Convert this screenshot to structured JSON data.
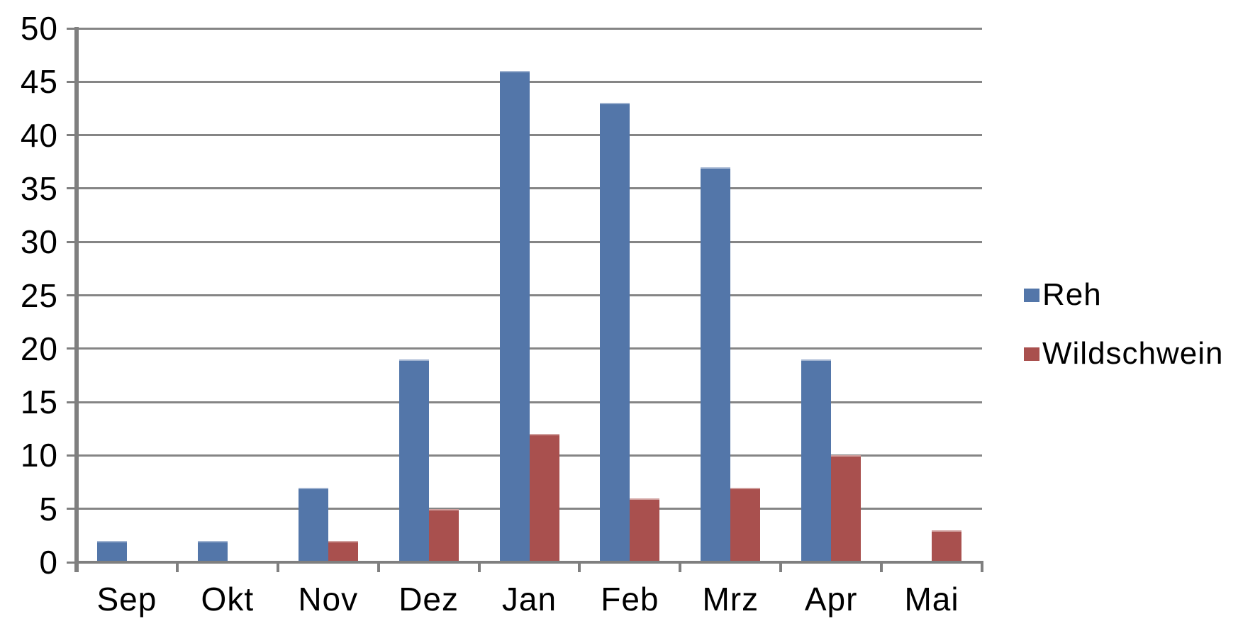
{
  "chart_data": {
    "type": "bar",
    "categories": [
      "Sep",
      "Okt",
      "Nov",
      "Dez",
      "Jan",
      "Feb",
      "Mrz",
      "Apr",
      "Mai"
    ],
    "series": [
      {
        "name": "Reh",
        "color": "#5376A9",
        "values": [
          2,
          2,
          7,
          19,
          46,
          43,
          37,
          19,
          0
        ]
      },
      {
        "name": "Wildschwein",
        "color": "#A9504E",
        "values": [
          0,
          0,
          2,
          5,
          12,
          6,
          7,
          10,
          3
        ]
      }
    ],
    "title": "",
    "xlabel": "",
    "ylabel": "",
    "ylim": [
      0,
      50
    ],
    "ytick_step": 5,
    "y_tick_labels": [
      "0",
      "5",
      "10",
      "15",
      "20",
      "25",
      "30",
      "35",
      "40",
      "45",
      "50"
    ],
    "grid": true,
    "legend_position": "right"
  },
  "legend": {
    "items": [
      {
        "label": "Reh",
        "swatch_color": "#5376A9"
      },
      {
        "label": "Wildschwein",
        "swatch_color": "#A9504E"
      }
    ]
  },
  "colors": {
    "background": "#FFFFFF",
    "gridline": "#858585",
    "axis": "#7F7F7F",
    "text": "#000000",
    "reh_bar": "#5376A9",
    "wildschwein_bar": "#A9504E"
  }
}
